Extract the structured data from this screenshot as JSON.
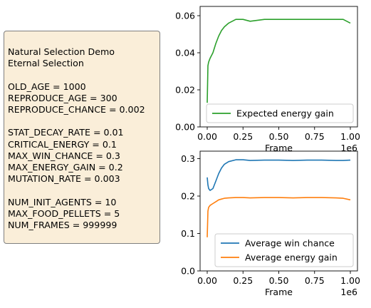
{
  "info_box": {
    "lines": [
      "Natural Selection Demo",
      "Eternal Selection",
      "",
      "OLD_AGE = 1000",
      "REPRODUCE_AGE = 300",
      "REPRODUCE_CHANCE = 0.002",
      "",
      "STAT_DECAY_RATE = 0.01",
      "CRITICAL_ENERGY = 0.1",
      "MAX_WIN_CHANCE = 0.3",
      "MAX_ENERGY_GAIN = 0.2",
      "MUTATION_RATE = 0.003",
      "",
      "NUM_INIT_AGENTS = 10",
      "MAX_FOOD_PELLETS = 5",
      "NUM_FRAMES = 999999"
    ]
  },
  "chart_data": [
    {
      "type": "line",
      "xlabel": "Frame",
      "x_offset_label": "1e6",
      "xlim": [
        0,
        1
      ],
      "ylim": [
        0,
        0.065
      ],
      "xticks": [
        "0.00",
        "0.25",
        "0.50",
        "0.75",
        "1.00"
      ],
      "yticks": [
        "0.00",
        "0.02",
        "0.04",
        "0.06"
      ],
      "legend_position": "lower-right",
      "series": [
        {
          "name": "Expected energy gain",
          "color": "#2ca02c",
          "x": [
            0,
            0.005,
            0.01,
            0.02,
            0.04,
            0.06,
            0.08,
            0.1,
            0.12,
            0.15,
            0.2,
            0.25,
            0.3,
            0.4,
            0.5,
            0.6,
            0.7,
            0.8,
            0.9,
            0.95,
            1.0
          ],
          "y": [
            0.013,
            0.033,
            0.035,
            0.037,
            0.04,
            0.045,
            0.049,
            0.052,
            0.054,
            0.056,
            0.058,
            0.058,
            0.057,
            0.058,
            0.058,
            0.058,
            0.058,
            0.058,
            0.058,
            0.058,
            0.056
          ]
        }
      ]
    },
    {
      "type": "line",
      "xlabel": "Frame",
      "x_offset_label": "1e6",
      "xlim": [
        0,
        1
      ],
      "ylim": [
        0,
        0.32
      ],
      "xticks": [
        "0.00",
        "0.25",
        "0.50",
        "0.75",
        "1.00"
      ],
      "yticks": [
        "0.0",
        "0.1",
        "0.2",
        "0.3"
      ],
      "legend_position": "lower-right",
      "series": [
        {
          "name": "Average win chance",
          "color": "#1f77b4",
          "x": [
            0,
            0.005,
            0.01,
            0.02,
            0.04,
            0.06,
            0.08,
            0.1,
            0.12,
            0.15,
            0.2,
            0.25,
            0.3,
            0.4,
            0.5,
            0.6,
            0.7,
            0.8,
            0.9,
            0.95,
            1.0
          ],
          "y": [
            0.25,
            0.23,
            0.22,
            0.215,
            0.22,
            0.24,
            0.26,
            0.275,
            0.285,
            0.292,
            0.297,
            0.297,
            0.295,
            0.296,
            0.296,
            0.295,
            0.296,
            0.296,
            0.295,
            0.295,
            0.296
          ]
        },
        {
          "name": "Average energy gain",
          "color": "#ff7f0e",
          "x": [
            0,
            0.005,
            0.01,
            0.02,
            0.04,
            0.06,
            0.08,
            0.1,
            0.12,
            0.15,
            0.2,
            0.25,
            0.3,
            0.4,
            0.5,
            0.6,
            0.7,
            0.8,
            0.9,
            0.95,
            1.0
          ],
          "y": [
            0.09,
            0.16,
            0.17,
            0.175,
            0.18,
            0.185,
            0.19,
            0.192,
            0.194,
            0.195,
            0.196,
            0.196,
            0.195,
            0.196,
            0.196,
            0.195,
            0.196,
            0.196,
            0.195,
            0.194,
            0.19
          ]
        }
      ]
    }
  ]
}
